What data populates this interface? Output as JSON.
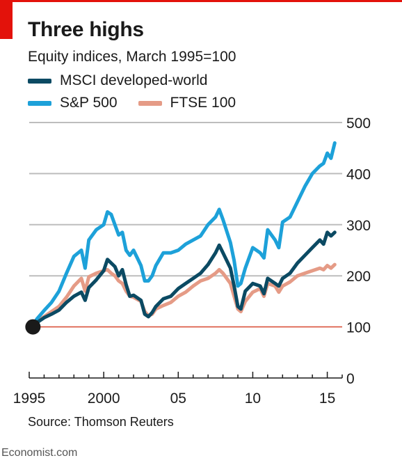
{
  "header": {
    "title": "Three highs",
    "subtitle": "Equity indices, March 1995=100"
  },
  "footer": {
    "source": "Source: Thomson Reuters",
    "credit": "Economist.com"
  },
  "colors": {
    "accent_red": "#e3120b",
    "msci": "#0b4a63",
    "sp500": "#1da1d9",
    "ftse": "#e59b86",
    "baseline": "#d9523b",
    "grid": "#bdbdbd",
    "marker": "#1a1a1a"
  },
  "legend": {
    "items": [
      {
        "label": "MSCI developed-world",
        "color": "#0b4a63"
      },
      {
        "label": "S&P 500",
        "color": "#1da1d9"
      },
      {
        "label": "FTSE 100",
        "color": "#e59b86"
      }
    ]
  },
  "chart_data": {
    "type": "line",
    "title": "Three highs",
    "subtitle": "Equity indices, March 1995=100",
    "xlabel": "",
    "ylabel": "",
    "xlim": [
      1995,
      2016
    ],
    "ylim": [
      0,
      500
    ],
    "yticks": [
      0,
      100,
      200,
      300,
      400,
      500
    ],
    "ytick_labels": [
      "0",
      "100",
      "200",
      "300",
      "400",
      "500"
    ],
    "xticks": [
      1995,
      2000,
      2005,
      2010,
      2015
    ],
    "xtick_labels": [
      "1995",
      "2000",
      "05",
      "10",
      "15"
    ],
    "grid": true,
    "y_axis_side": "right",
    "legend_position": "top-left",
    "reference_line": {
      "y": 100
    },
    "start_marker": {
      "x": 1995.25,
      "y": 100
    },
    "series": [
      {
        "name": "MSCI developed-world",
        "x": [
          1995.25,
          1995.5,
          1996,
          1996.5,
          1997,
          1997.5,
          1998,
          1998.5,
          1998.75,
          1999,
          1999.5,
          2000,
          2000.25,
          2000.5,
          2000.75,
          2001,
          2001.25,
          2001.5,
          2001.75,
          2002,
          2002.5,
          2002.75,
          2003,
          2003.25,
          2003.5,
          2004,
          2004.5,
          2005,
          2005.5,
          2006,
          2006.5,
          2007,
          2007.5,
          2007.75,
          2008,
          2008.5,
          2008.75,
          2009,
          2009.2,
          2009.5,
          2010,
          2010.5,
          2010.75,
          2011,
          2011.5,
          2011.75,
          2012,
          2012.5,
          2013,
          2013.5,
          2014,
          2014.5,
          2014.75,
          2015,
          2015.25,
          2015.5
        ],
        "values": [
          100,
          108,
          118,
          125,
          133,
          148,
          160,
          168,
          152,
          177,
          192,
          210,
          232,
          225,
          218,
          200,
          212,
          183,
          160,
          162,
          152,
          125,
          120,
          128,
          140,
          155,
          160,
          175,
          185,
          195,
          205,
          222,
          245,
          260,
          245,
          215,
          180,
          140,
          135,
          170,
          185,
          180,
          165,
          195,
          185,
          180,
          195,
          205,
          225,
          240,
          255,
          270,
          262,
          285,
          278,
          285
        ]
      },
      {
        "name": "S&P 500",
        "x": [
          1995.25,
          1995.5,
          1996,
          1996.5,
          1997,
          1997.5,
          1998,
          1998.5,
          1998.75,
          1999,
          1999.5,
          2000,
          2000.25,
          2000.5,
          2000.75,
          2001,
          2001.25,
          2001.5,
          2001.75,
          2002,
          2002.25,
          2002.5,
          2002.75,
          2003,
          2003.25,
          2003.5,
          2004,
          2004.5,
          2005,
          2005.5,
          2006,
          2006.5,
          2007,
          2007.5,
          2007.75,
          2008,
          2008.5,
          2008.75,
          2009,
          2009.2,
          2009.5,
          2010,
          2010.5,
          2010.75,
          2011,
          2011.5,
          2011.75,
          2012,
          2012.5,
          2013,
          2013.5,
          2014,
          2014.5,
          2014.75,
          2015,
          2015.25,
          2015.5
        ],
        "values": [
          100,
          115,
          132,
          148,
          170,
          205,
          238,
          250,
          215,
          270,
          290,
          300,
          325,
          320,
          300,
          280,
          285,
          250,
          240,
          250,
          235,
          220,
          190,
          190,
          200,
          220,
          245,
          245,
          250,
          262,
          270,
          278,
          300,
          315,
          330,
          310,
          265,
          230,
          180,
          185,
          215,
          255,
          245,
          235,
          290,
          270,
          255,
          305,
          315,
          345,
          375,
          400,
          415,
          420,
          440,
          430,
          460
        ]
      },
      {
        "name": "FTSE 100",
        "x": [
          1995.25,
          1995.5,
          1996,
          1996.5,
          1997,
          1997.5,
          1998,
          1998.5,
          1998.75,
          1999,
          1999.5,
          2000,
          2000.25,
          2000.5,
          2000.75,
          2001,
          2001.25,
          2001.5,
          2001.75,
          2002,
          2002.5,
          2002.75,
          2003,
          2003.25,
          2003.5,
          2004,
          2004.5,
          2005,
          2005.5,
          2006,
          2006.5,
          2007,
          2007.5,
          2007.75,
          2008,
          2008.5,
          2008.75,
          2009,
          2009.2,
          2009.5,
          2010,
          2010.5,
          2010.75,
          2011,
          2011.5,
          2011.75,
          2012,
          2012.5,
          2013,
          2013.5,
          2014,
          2014.5,
          2014.75,
          2015,
          2015.25,
          2015.5
        ],
        "values": [
          100,
          110,
          120,
          130,
          140,
          158,
          180,
          195,
          170,
          198,
          205,
          210,
          212,
          205,
          200,
          190,
          185,
          170,
          160,
          158,
          150,
          130,
          122,
          125,
          135,
          142,
          148,
          160,
          168,
          180,
          190,
          195,
          205,
          212,
          205,
          185,
          160,
          135,
          130,
          150,
          168,
          175,
          160,
          185,
          180,
          168,
          180,
          188,
          200,
          205,
          210,
          215,
          212,
          220,
          215,
          222
        ]
      }
    ]
  }
}
